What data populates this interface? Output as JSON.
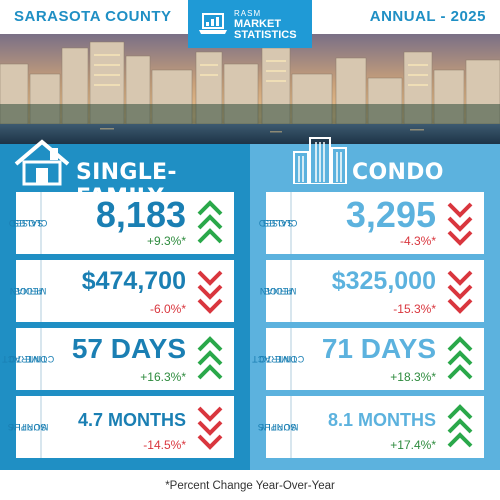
{
  "header": {
    "county": "SARASOTA COUNTY",
    "period": "ANNUAL - 2025",
    "logo": {
      "line1": "RASM",
      "line2": "MARKET",
      "line3": "STATISTICS"
    }
  },
  "colors": {
    "left_panel": "#1f8fc4",
    "right_panel": "#5cb2de",
    "up": "#2aa84a",
    "down": "#d9363e"
  },
  "single_family": {
    "title": "SINGLE-FAMILY",
    "icon": "house-icon",
    "metrics": [
      {
        "label1": "CLOSED",
        "label2": "SALES",
        "value": "8,183",
        "change": "+9.3%*",
        "direction": "up"
      },
      {
        "label1": "MEDIAN",
        "label2": "PRICE",
        "value": "$474,700",
        "change": "-6.0%*",
        "direction": "down"
      },
      {
        "label1": "TIME TO",
        "label2": "CONTRACT",
        "value": "57 DAYS",
        "change": "+16.3%*",
        "direction": "up"
      },
      {
        "label1": "MONTHS",
        "label2": "SUPPLY",
        "value": "4.7 MONTHS",
        "change": "-14.5%*",
        "direction": "down"
      }
    ]
  },
  "condo": {
    "title": "CONDO",
    "icon": "building-icon",
    "metrics": [
      {
        "label1": "CLOSED",
        "label2": "SALES",
        "value": "3,295",
        "change": "-4.3%*",
        "direction": "down"
      },
      {
        "label1": "MEDIAN",
        "label2": "PRICE",
        "value": "$325,000",
        "change": "-15.3%*",
        "direction": "down"
      },
      {
        "label1": "TIME TO",
        "label2": "CONTRACT",
        "value": "71 DAYS",
        "change": "+18.3%*",
        "direction": "up"
      },
      {
        "label1": "MONTHS",
        "label2": "SUPPLY",
        "value": "8.1 MONTHS",
        "change": "+17.4%*",
        "direction": "up"
      }
    ]
  },
  "footnote": "*Percent Change Year-Over-Year"
}
